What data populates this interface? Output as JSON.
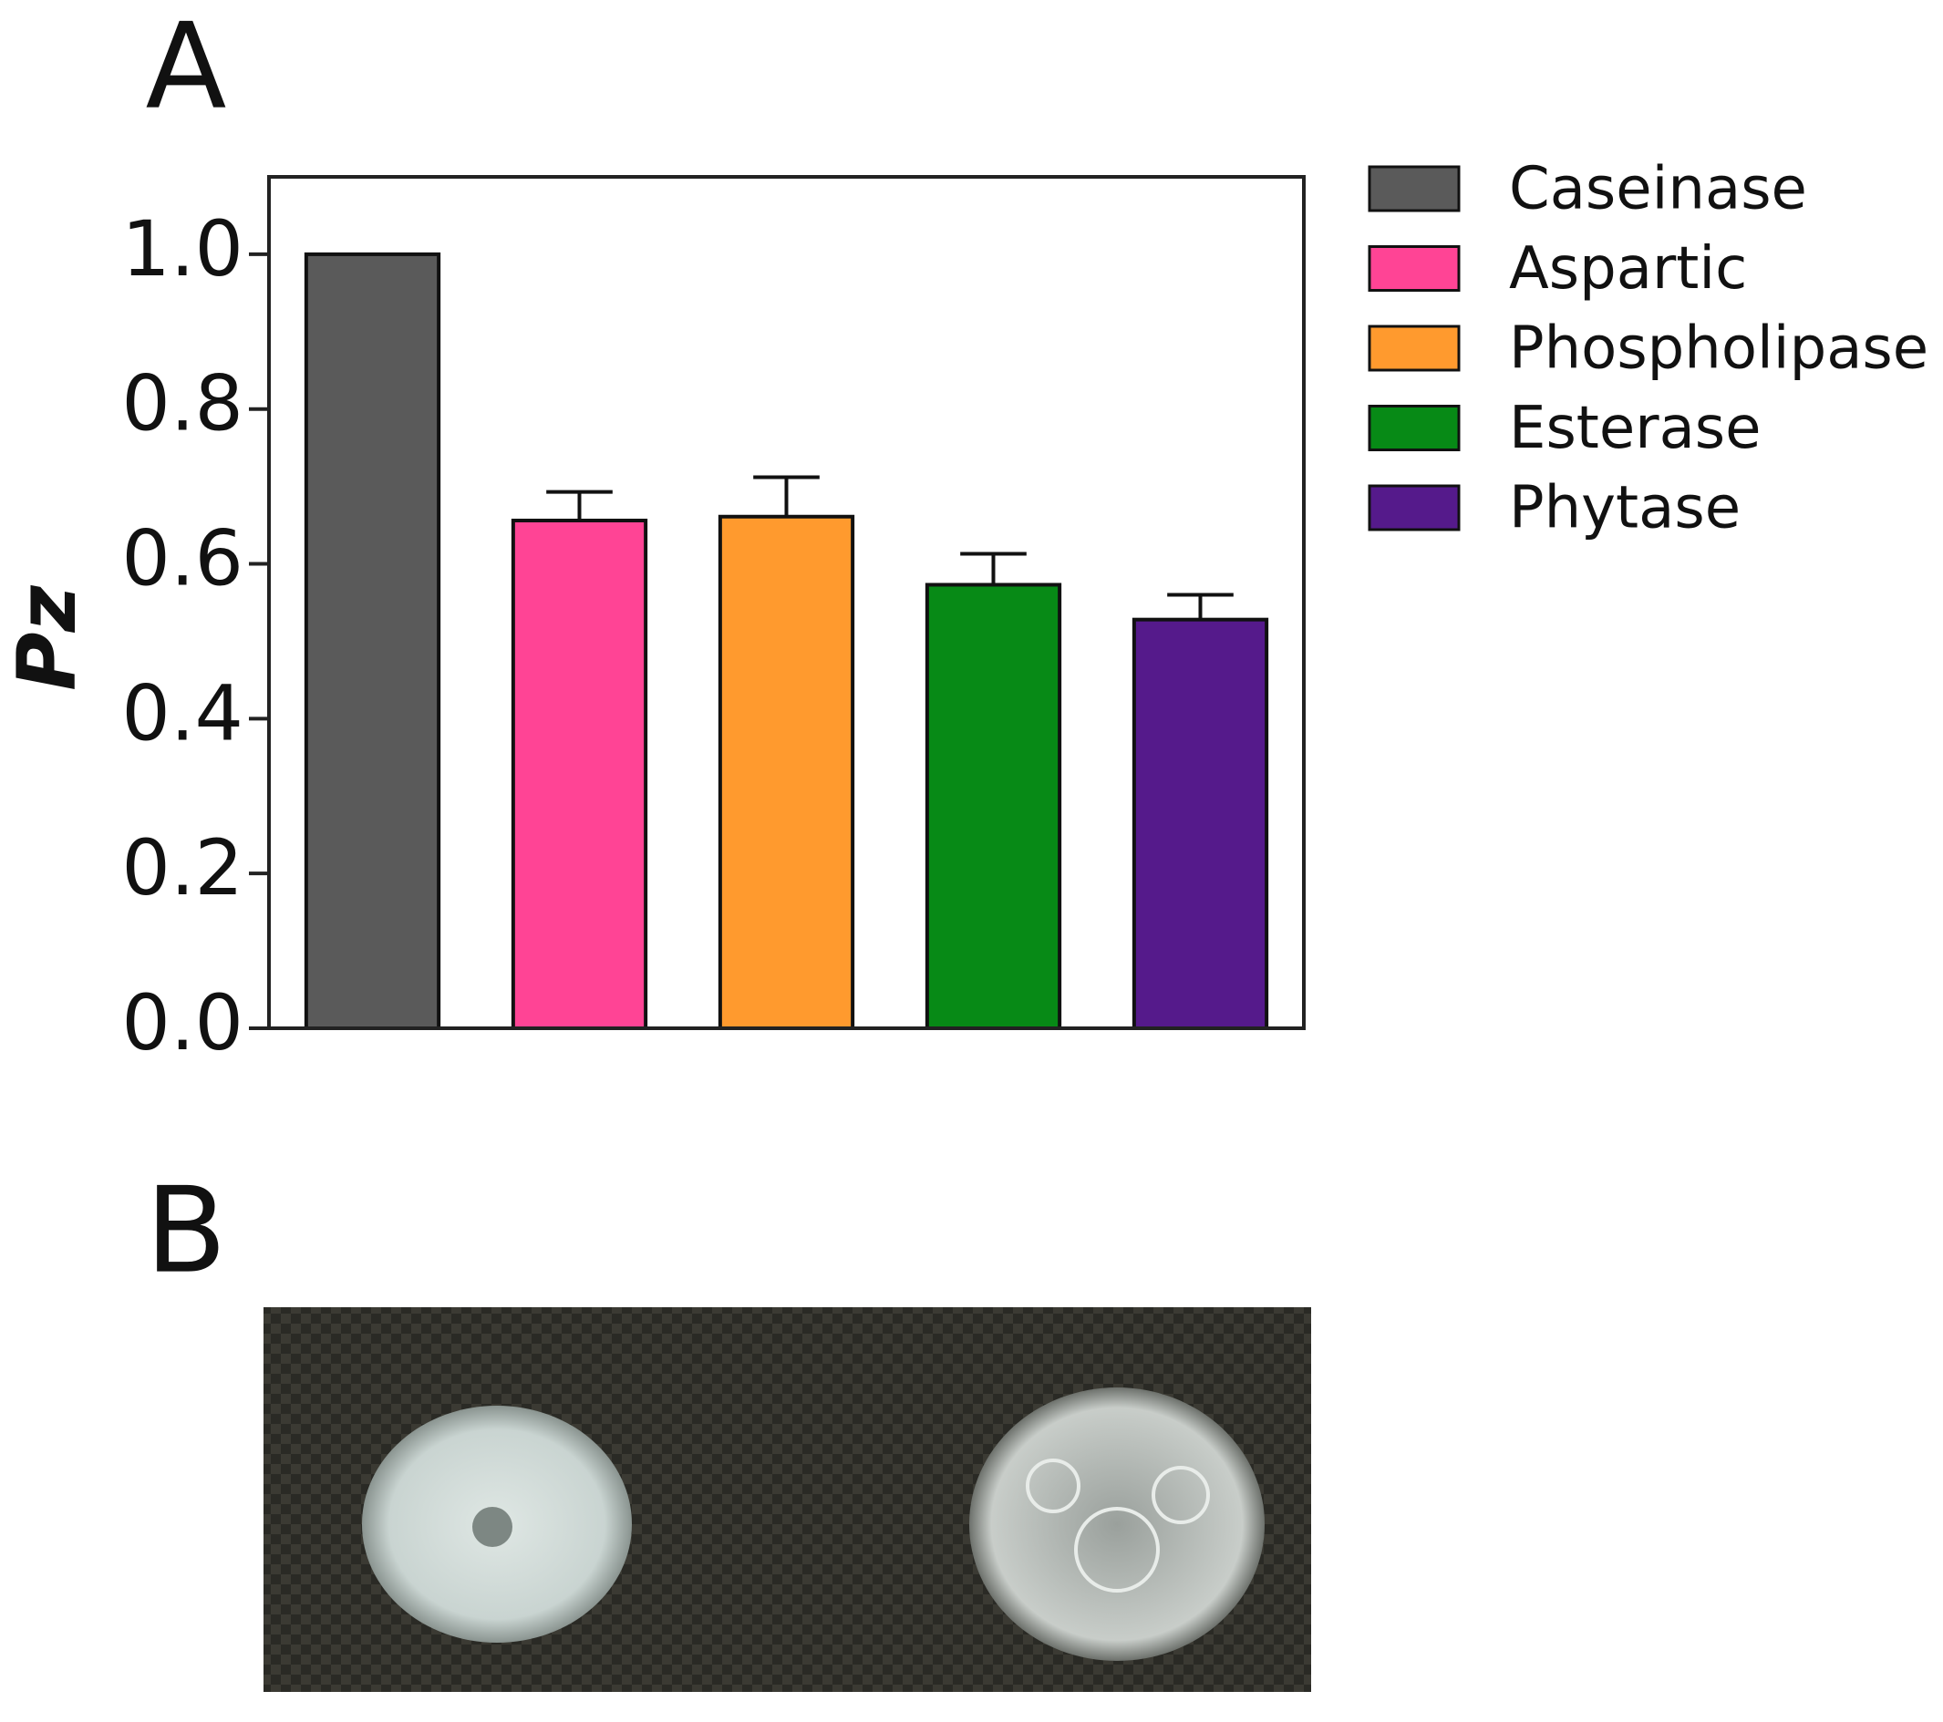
{
  "panel_labels": [
    "A",
    "B"
  ],
  "chart_data": {
    "type": "bar",
    "y_label": "Pz",
    "categories": [
      "Caseinase",
      "Aspartic",
      "Phospholipase",
      "Esterase",
      "Phytase"
    ],
    "values": [
      1.0,
      0.656,
      0.661,
      0.573,
      0.528
    ],
    "errors": [
      null,
      0.037,
      0.051,
      0.04,
      0.032
    ],
    "colors": [
      "#5a5a5a",
      "#ff4495",
      "#ff9a2e",
      "#078a16",
      "#551a8b"
    ],
    "ylim": [
      0,
      1.1
    ],
    "yticks": [
      {
        "value": 0,
        "label": "0.0"
      },
      0.2,
      0.4,
      0.6,
      0.8,
      {
        "value": 1,
        "label": "1.0"
      }
    ],
    "legend": "right"
  }
}
